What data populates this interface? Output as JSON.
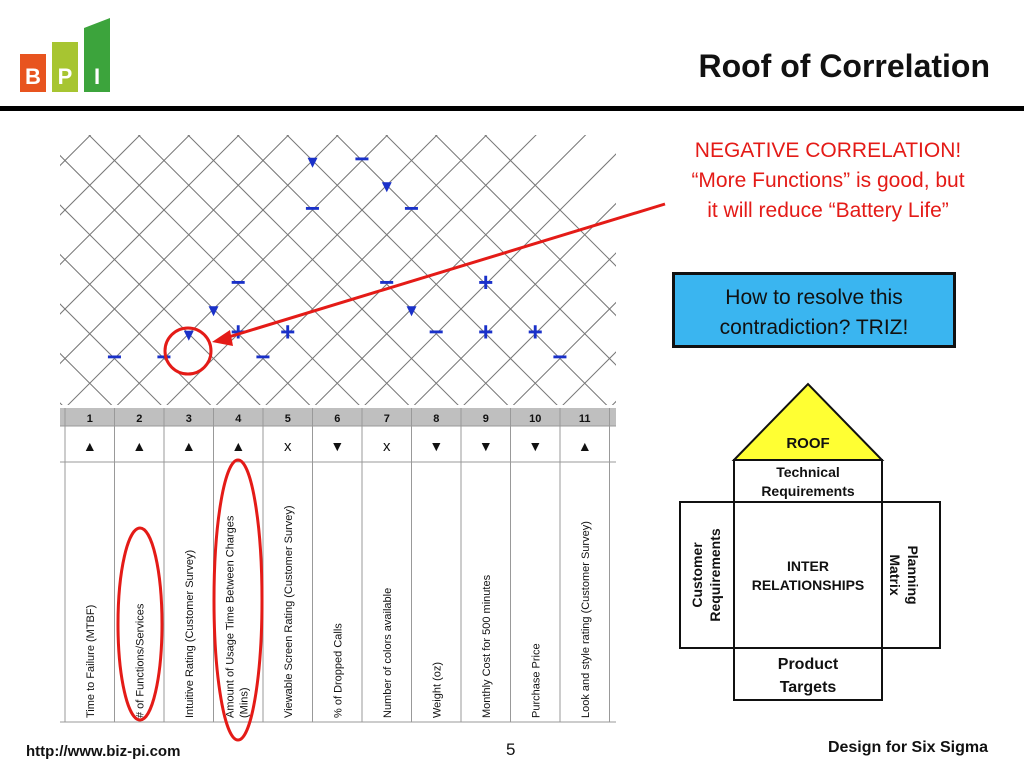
{
  "slide": {
    "title": "Roof of Correlation",
    "logo_letters": [
      "B",
      "P",
      "I"
    ],
    "footer": {
      "url": "http://www.biz-pi.com",
      "page": "5",
      "course": "Design for Six Sigma"
    }
  },
  "callout": {
    "line1": "NEGATIVE CORRELATION!",
    "line2": "“More Functions” is good, but",
    "line3": "it will reduce “Battery Life”"
  },
  "question_box": {
    "line1": "How to resolve this",
    "line2": "contradiction? TRIZ!"
  },
  "house": {
    "roof": "ROOF",
    "technical_line1": "Technical",
    "technical_line2": "Requirements",
    "customer_line1": "Customer",
    "customer_line2": "Requirements",
    "inter_line1": "INTER",
    "inter_line2": "RELATIONSHIPS",
    "planning_line1": "Planning",
    "planning_line2": "Matrix",
    "targets_line1": "Product",
    "targets_line2": "Targets"
  },
  "matrix": {
    "columns": [
      {
        "num": "1",
        "dir": "▲",
        "label": "Time to Failure (MTBF)"
      },
      {
        "num": "2",
        "dir": "▲",
        "label": "# of Functions/Services"
      },
      {
        "num": "3",
        "dir": "▲",
        "label": "Intuitive Rating (Customer Survey)"
      },
      {
        "num": "4",
        "dir": "▲",
        "label": "Amount of Usage Time Between Charges",
        "label2": "(Mins)"
      },
      {
        "num": "5",
        "dir": "x",
        "label": "Viewable Screen Rating (Customer Survey)"
      },
      {
        "num": "6",
        "dir": "▼",
        "label": "% of Dropped Calls"
      },
      {
        "num": "7",
        "dir": "x",
        "label": "Number of colors available"
      },
      {
        "num": "8",
        "dir": "▼",
        "label": "Weight (oz)"
      },
      {
        "num": "9",
        "dir": "▼",
        "label": "Monthly Cost for 500 minutes"
      },
      {
        "num": "10",
        "dir": "▼",
        "label": "Purchase Price"
      },
      {
        "num": "11",
        "dir": "▲",
        "label": "Look and style rating (Customer Survey)"
      }
    ],
    "roof_marks": [
      {
        "pair": [
          1,
          2
        ],
        "sym": "−"
      },
      {
        "pair": [
          2,
          3
        ],
        "sym": "−"
      },
      {
        "pair": [
          4,
          5
        ],
        "sym": "−"
      },
      {
        "pair": [
          10,
          11
        ],
        "sym": "−"
      },
      {
        "pair": [
          2,
          4
        ],
        "sym": "▼"
      },
      {
        "pair": [
          3,
          5
        ],
        "sym": "+"
      },
      {
        "pair": [
          4,
          6
        ],
        "sym": "+"
      },
      {
        "pair": [
          8,
          10
        ],
        "sym": "+"
      },
      {
        "pair": [
          9,
          11
        ],
        "sym": "+"
      },
      {
        "pair": [
          2,
          5
        ],
        "sym": "▼"
      },
      {
        "pair": [
          5,
          9
        ],
        "sym": "−"
      },
      {
        "pair": [
          6,
          9
        ],
        "sym": "▼"
      },
      {
        "pair": [
          7,
          9
        ],
        "sym": "−"
      },
      {
        "pair": [
          2,
          6
        ],
        "sym": "−"
      },
      {
        "pair": [
          7,
          11
        ],
        "sym": "+"
      },
      {
        "pair": [
          4,
          11
        ],
        "sym": "−"
      },
      {
        "pair": [
          3,
          11
        ],
        "sym": "▼"
      },
      {
        "pair": [
          2,
          11
        ],
        "sym": "−"
      },
      {
        "pair": [
          1,
          11
        ],
        "sym": "−"
      },
      {
        "pair": [
          1,
          10
        ],
        "sym": "▼"
      },
      {
        "pair": [
          2,
          9
        ],
        "sym": "−"
      }
    ],
    "colors": {
      "mark": "#1a31c9",
      "highlight": "#e41b17",
      "header": "#bfbfbf"
    }
  }
}
